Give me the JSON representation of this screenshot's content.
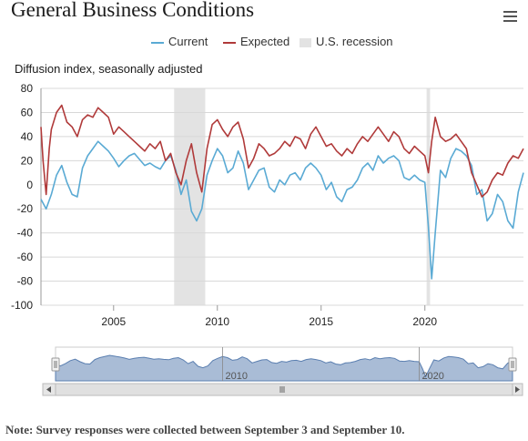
{
  "page": {
    "menu_icon": "hamburger-menu-icon",
    "note": "Note: Survey responses were collected between September 3 and September 10."
  },
  "chart_data": {
    "type": "line",
    "title": "General Business Conditions",
    "ylabel": "Diffusion index, seasonally adjusted",
    "ylim": [
      -100,
      80
    ],
    "y_ticks": [
      "80",
      "60",
      "40",
      "20",
      "0",
      "-20",
      "-40",
      "-60",
      "-80",
      "-100"
    ],
    "xlim": [
      2001.5,
      2024.75
    ],
    "x_ticks": [
      "2005",
      "2010",
      "2015",
      "2020"
    ],
    "navigator_ticks": [
      "2010",
      "2020"
    ],
    "grid": true,
    "legend_position": "top-center",
    "legend": [
      {
        "name": "Current",
        "color": "#5aaad4",
        "type": "line"
      },
      {
        "name": "Expected",
        "color": "#b03a3a",
        "type": "line"
      },
      {
        "name": "U.S. recession",
        "color": "#e3e3e3",
        "type": "box"
      }
    ],
    "recessions": [
      [
        2007.917,
        2009.417
      ],
      [
        2020.083,
        2020.25
      ]
    ],
    "series": [
      {
        "name": "Current",
        "color": "#5aaad4",
        "points": [
          [
            2001.5,
            -12
          ],
          [
            2001.75,
            -20
          ],
          [
            2002.0,
            -8
          ],
          [
            2002.25,
            8
          ],
          [
            2002.5,
            16
          ],
          [
            2002.75,
            2
          ],
          [
            2003.0,
            -8
          ],
          [
            2003.25,
            -10
          ],
          [
            2003.5,
            14
          ],
          [
            2003.75,
            24
          ],
          [
            2004.0,
            30
          ],
          [
            2004.25,
            36
          ],
          [
            2004.5,
            32
          ],
          [
            2004.75,
            28
          ],
          [
            2005.0,
            22
          ],
          [
            2005.25,
            15
          ],
          [
            2005.5,
            20
          ],
          [
            2005.75,
            24
          ],
          [
            2006.0,
            26
          ],
          [
            2006.25,
            21
          ],
          [
            2006.5,
            16
          ],
          [
            2006.75,
            18
          ],
          [
            2007.0,
            15
          ],
          [
            2007.25,
            13
          ],
          [
            2007.5,
            20
          ],
          [
            2007.75,
            24
          ],
          [
            2008.0,
            12
          ],
          [
            2008.25,
            -8
          ],
          [
            2008.5,
            4
          ],
          [
            2008.75,
            -22
          ],
          [
            2009.0,
            -30
          ],
          [
            2009.25,
            -20
          ],
          [
            2009.5,
            8
          ],
          [
            2009.75,
            20
          ],
          [
            2010.0,
            30
          ],
          [
            2010.25,
            24
          ],
          [
            2010.5,
            10
          ],
          [
            2010.75,
            14
          ],
          [
            2011.0,
            28
          ],
          [
            2011.25,
            18
          ],
          [
            2011.5,
            -4
          ],
          [
            2011.75,
            4
          ],
          [
            2012.0,
            12
          ],
          [
            2012.25,
            14
          ],
          [
            2012.5,
            -2
          ],
          [
            2012.75,
            -6
          ],
          [
            2013.0,
            4
          ],
          [
            2013.25,
            0
          ],
          [
            2013.5,
            8
          ],
          [
            2013.75,
            10
          ],
          [
            2014.0,
            4
          ],
          [
            2014.25,
            14
          ],
          [
            2014.5,
            18
          ],
          [
            2014.75,
            14
          ],
          [
            2015.0,
            8
          ],
          [
            2015.25,
            -4
          ],
          [
            2015.5,
            2
          ],
          [
            2015.75,
            -10
          ],
          [
            2016.0,
            -14
          ],
          [
            2016.25,
            -4
          ],
          [
            2016.5,
            -2
          ],
          [
            2016.75,
            4
          ],
          [
            2017.0,
            14
          ],
          [
            2017.25,
            18
          ],
          [
            2017.5,
            12
          ],
          [
            2017.75,
            24
          ],
          [
            2018.0,
            18
          ],
          [
            2018.25,
            22
          ],
          [
            2018.5,
            24
          ],
          [
            2018.75,
            20
          ],
          [
            2019.0,
            6
          ],
          [
            2019.25,
            4
          ],
          [
            2019.5,
            8
          ],
          [
            2019.75,
            4
          ],
          [
            2020.0,
            2
          ],
          [
            2020.17,
            -35
          ],
          [
            2020.33,
            -78
          ],
          [
            2020.5,
            -40
          ],
          [
            2020.75,
            12
          ],
          [
            2021.0,
            6
          ],
          [
            2021.25,
            22
          ],
          [
            2021.5,
            30
          ],
          [
            2021.75,
            28
          ],
          [
            2022.0,
            24
          ],
          [
            2022.25,
            16
          ],
          [
            2022.5,
            -8
          ],
          [
            2022.75,
            -4
          ],
          [
            2023.0,
            -30
          ],
          [
            2023.25,
            -24
          ],
          [
            2023.5,
            -8
          ],
          [
            2023.75,
            -14
          ],
          [
            2024.0,
            -30
          ],
          [
            2024.25,
            -36
          ],
          [
            2024.5,
            -6
          ],
          [
            2024.75,
            10
          ]
        ]
      },
      {
        "name": "Expected",
        "color": "#b03a3a",
        "points": [
          [
            2001.5,
            48
          ],
          [
            2001.6,
            20
          ],
          [
            2001.75,
            -8
          ],
          [
            2001.9,
            30
          ],
          [
            2002.0,
            46
          ],
          [
            2002.25,
            60
          ],
          [
            2002.5,
            66
          ],
          [
            2002.75,
            52
          ],
          [
            2003.0,
            48
          ],
          [
            2003.25,
            40
          ],
          [
            2003.5,
            54
          ],
          [
            2003.75,
            58
          ],
          [
            2004.0,
            56
          ],
          [
            2004.25,
            64
          ],
          [
            2004.5,
            60
          ],
          [
            2004.75,
            56
          ],
          [
            2005.0,
            42
          ],
          [
            2005.25,
            48
          ],
          [
            2005.5,
            44
          ],
          [
            2005.75,
            40
          ],
          [
            2006.0,
            36
          ],
          [
            2006.25,
            32
          ],
          [
            2006.5,
            28
          ],
          [
            2006.75,
            34
          ],
          [
            2007.0,
            30
          ],
          [
            2007.25,
            36
          ],
          [
            2007.5,
            20
          ],
          [
            2007.75,
            26
          ],
          [
            2008.0,
            10
          ],
          [
            2008.25,
            0
          ],
          [
            2008.5,
            20
          ],
          [
            2008.75,
            34
          ],
          [
            2009.0,
            10
          ],
          [
            2009.25,
            -6
          ],
          [
            2009.5,
            30
          ],
          [
            2009.75,
            50
          ],
          [
            2010.0,
            54
          ],
          [
            2010.25,
            46
          ],
          [
            2010.5,
            40
          ],
          [
            2010.75,
            48
          ],
          [
            2011.0,
            52
          ],
          [
            2011.25,
            38
          ],
          [
            2011.5,
            14
          ],
          [
            2011.75,
            22
          ],
          [
            2012.0,
            34
          ],
          [
            2012.25,
            30
          ],
          [
            2012.5,
            24
          ],
          [
            2012.75,
            26
          ],
          [
            2013.0,
            30
          ],
          [
            2013.25,
            36
          ],
          [
            2013.5,
            32
          ],
          [
            2013.75,
            40
          ],
          [
            2014.0,
            38
          ],
          [
            2014.25,
            30
          ],
          [
            2014.5,
            42
          ],
          [
            2014.75,
            48
          ],
          [
            2015.0,
            40
          ],
          [
            2015.25,
            32
          ],
          [
            2015.5,
            34
          ],
          [
            2015.75,
            28
          ],
          [
            2016.0,
            24
          ],
          [
            2016.25,
            30
          ],
          [
            2016.5,
            26
          ],
          [
            2016.75,
            34
          ],
          [
            2017.0,
            40
          ],
          [
            2017.25,
            36
          ],
          [
            2017.5,
            42
          ],
          [
            2017.75,
            48
          ],
          [
            2018.0,
            42
          ],
          [
            2018.25,
            36
          ],
          [
            2018.5,
            44
          ],
          [
            2018.75,
            40
          ],
          [
            2019.0,
            30
          ],
          [
            2019.25,
            26
          ],
          [
            2019.5,
            32
          ],
          [
            2019.75,
            28
          ],
          [
            2020.0,
            24
          ],
          [
            2020.17,
            10
          ],
          [
            2020.33,
            36
          ],
          [
            2020.5,
            56
          ],
          [
            2020.75,
            40
          ],
          [
            2021.0,
            36
          ],
          [
            2021.25,
            38
          ],
          [
            2021.5,
            42
          ],
          [
            2021.75,
            36
          ],
          [
            2022.0,
            30
          ],
          [
            2022.25,
            10
          ],
          [
            2022.5,
            0
          ],
          [
            2022.75,
            -10
          ],
          [
            2023.0,
            -6
          ],
          [
            2023.25,
            4
          ],
          [
            2023.5,
            10
          ],
          [
            2023.75,
            8
          ],
          [
            2024.0,
            18
          ],
          [
            2024.25,
            24
          ],
          [
            2024.5,
            22
          ],
          [
            2024.75,
            30
          ]
        ]
      }
    ]
  }
}
